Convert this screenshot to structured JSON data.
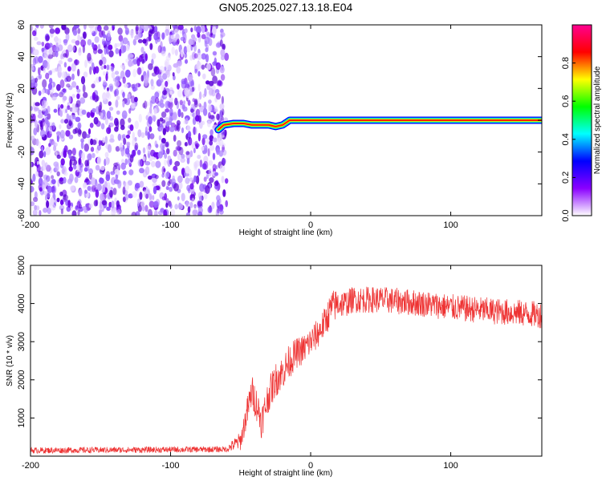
{
  "title": "GN05.2025.027.13.18.E04",
  "colors": {
    "snr_line": "#ee3333",
    "noise": "#6a00ee",
    "background": "#ffffff"
  },
  "chart_data": [
    {
      "type": "heatmap",
      "title": "GN05.2025.027.13.18.E04",
      "xlabel": "Height of straight line (km)",
      "ylabel": "Frequency (Hz)",
      "xlim": [
        -200,
        165
      ],
      "ylim": [
        -60,
        60
      ],
      "x_ticks": [
        "-200",
        "-100",
        "0",
        "100"
      ],
      "y_ticks": [
        "-60",
        "-40",
        "-20",
        "0",
        "20",
        "40",
        "60"
      ],
      "colorbar": {
        "label": "Normalized spectral amplitude",
        "range": [
          0,
          1
        ],
        "ticks": [
          "0.0",
          "0.2",
          "0.4",
          "0.6",
          "0.8"
        ],
        "colormap": [
          "#ffffff",
          "#8a00ff",
          "#0000ff",
          "#00ffff",
          "#00ff00",
          "#ffff00",
          "#ff0000",
          "#ff0090"
        ]
      },
      "noise_region_x": [
        -200,
        -60
      ],
      "signal_track": {
        "x": [
          -66,
          -62,
          -55,
          -48,
          -42,
          -36,
          -30,
          -25,
          -20,
          -15,
          0,
          50,
          100,
          165
        ],
        "freq": [
          -6,
          -3,
          -2,
          -2,
          -3,
          -3,
          -3,
          -4,
          -3,
          0,
          0,
          0,
          0,
          0
        ],
        "amplitude": 0.95
      },
      "grid": false
    },
    {
      "type": "line",
      "xlabel": "Height of straight line (km)",
      "ylabel": "SNR (10 * v/v)",
      "xlim": [
        -200,
        165
      ],
      "ylim": [
        0,
        5000
      ],
      "x_ticks": [
        "-200",
        "-100",
        "0",
        "100"
      ],
      "y_ticks": [
        "1000",
        "2000",
        "3000",
        "4000",
        "5000"
      ],
      "series": [
        {
          "x": [
            -200,
            -150,
            -100,
            -60,
            -50,
            -45,
            -42,
            -38,
            -35,
            -30,
            -25,
            -20,
            -15,
            -10,
            -5,
            0,
            5,
            10,
            15,
            20,
            25,
            30,
            50,
            80,
            100,
            130,
            150,
            165
          ],
          "values": [
            150,
            160,
            170,
            180,
            400,
            1200,
            1700,
            1300,
            900,
            1600,
            2000,
            2200,
            2500,
            2700,
            2800,
            3000,
            3200,
            3500,
            3900,
            4000,
            4000,
            4100,
            4100,
            4000,
            3900,
            3800,
            3750,
            3700
          ],
          "noise_amplitude": [
            80,
            80,
            80,
            80,
            250,
            400,
            450,
            450,
            450,
            450,
            450,
            450,
            450,
            400,
            400,
            400,
            400,
            400,
            450,
            400,
            350,
            350,
            350,
            350,
            350,
            350,
            350,
            350
          ]
        }
      ],
      "grid": false
    }
  ]
}
